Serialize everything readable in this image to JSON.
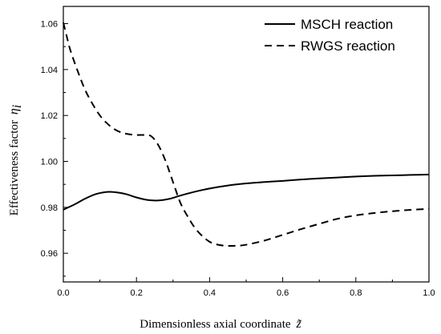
{
  "chart_data": {
    "type": "line",
    "xlabel": "Dimensionless axial coordinate",
    "xlabel_symbol": "z̃",
    "ylabel": "Effectiveness factor",
    "ylabel_symbol": "η",
    "ylabel_symbol_sub": "i",
    "xlim": [
      0.0,
      1.0
    ],
    "ylim": [
      0.9475,
      1.0675
    ],
    "x_ticks": [
      0.0,
      0.2,
      0.4,
      0.6,
      0.8,
      1.0
    ],
    "x_tick_labels": [
      "0.0",
      "0.2",
      "0.4",
      "0.6",
      "0.8",
      "1.0"
    ],
    "y_ticks": [
      0.96,
      0.98,
      1.0,
      1.02,
      1.04,
      1.06
    ],
    "y_tick_labels": [
      "0.96",
      "0.98",
      "1.00",
      "1.02",
      "1.04",
      "1.06"
    ],
    "grid": false,
    "legend_position": "top-right",
    "series": [
      {
        "name": "MSCH reaction",
        "dash": "solid",
        "color": "#000000",
        "x": [
          0.0,
          0.03,
          0.06,
          0.09,
          0.12,
          0.14,
          0.17,
          0.2,
          0.23,
          0.26,
          0.29,
          0.32,
          0.36,
          0.4,
          0.45,
          0.5,
          0.55,
          0.6,
          0.65,
          0.7,
          0.75,
          0.8,
          0.85,
          0.9,
          0.95,
          1.0
        ],
        "y": [
          0.979,
          0.9812,
          0.9838,
          0.9858,
          0.9867,
          0.9866,
          0.9858,
          0.9843,
          0.9832,
          0.983,
          0.9837,
          0.9851,
          0.9868,
          0.9882,
          0.9895,
          0.9904,
          0.991,
          0.9915,
          0.9921,
          0.9926,
          0.993,
          0.9934,
          0.9937,
          0.9939,
          0.9941,
          0.9943
        ]
      },
      {
        "name": "RWGS reaction",
        "dash": "dashed",
        "color": "#000000",
        "x": [
          0.0,
          0.01,
          0.02,
          0.04,
          0.06,
          0.08,
          0.1,
          0.12,
          0.14,
          0.16,
          0.18,
          0.2,
          0.22,
          0.24,
          0.26,
          0.28,
          0.3,
          0.32,
          0.34,
          0.36,
          0.38,
          0.4,
          0.42,
          0.44,
          0.46,
          0.48,
          0.5,
          0.55,
          0.6,
          0.65,
          0.7,
          0.75,
          0.8,
          0.85,
          0.9,
          0.95,
          1.0
        ],
        "y": [
          1.0605,
          1.054,
          1.048,
          1.039,
          1.031,
          1.025,
          1.02,
          1.0165,
          1.014,
          1.0125,
          1.0118,
          1.0115,
          1.0115,
          1.011,
          1.007,
          1.0,
          0.991,
          0.982,
          0.976,
          0.971,
          0.9675,
          0.965,
          0.9638,
          0.9633,
          0.9632,
          0.9633,
          0.9637,
          0.9655,
          0.968,
          0.9705,
          0.9728,
          0.975,
          0.9765,
          0.9775,
          0.9783,
          0.9789,
          0.9793
        ]
      }
    ]
  }
}
